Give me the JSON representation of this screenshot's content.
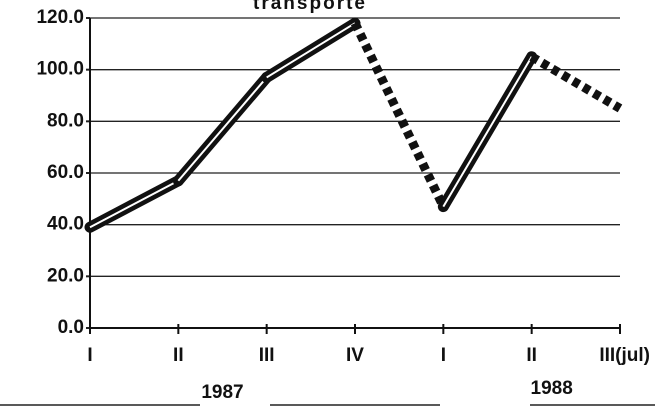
{
  "chart_data": {
    "type": "line",
    "title": "transporte",
    "categories": [
      "I",
      "II",
      "III",
      "IV",
      "I",
      "II",
      "III(jul)"
    ],
    "groups": [
      {
        "label": "1987",
        "start": 0,
        "end": 3
      },
      {
        "label": "1988",
        "start": 4,
        "end": 6
      }
    ],
    "series": [
      {
        "name": "transporte",
        "color": "#111111",
        "values": [
          39,
          57,
          97,
          118,
          47,
          105,
          85
        ],
        "segment_styles": [
          "solid",
          "solid",
          "solid",
          "dashed",
          "solid",
          "dashed"
        ]
      }
    ],
    "ylim": [
      0,
      120
    ],
    "yticks": [
      {
        "value": 0,
        "label": "0.0"
      },
      {
        "value": 20,
        "label": "20.0"
      },
      {
        "value": 40,
        "label": "40.0"
      },
      {
        "value": 60,
        "label": "60.0"
      },
      {
        "value": 80,
        "label": "80.0"
      },
      {
        "value": 100,
        "label": "100.0"
      },
      {
        "value": 120,
        "label": "120.0"
      }
    ],
    "grid": true
  }
}
